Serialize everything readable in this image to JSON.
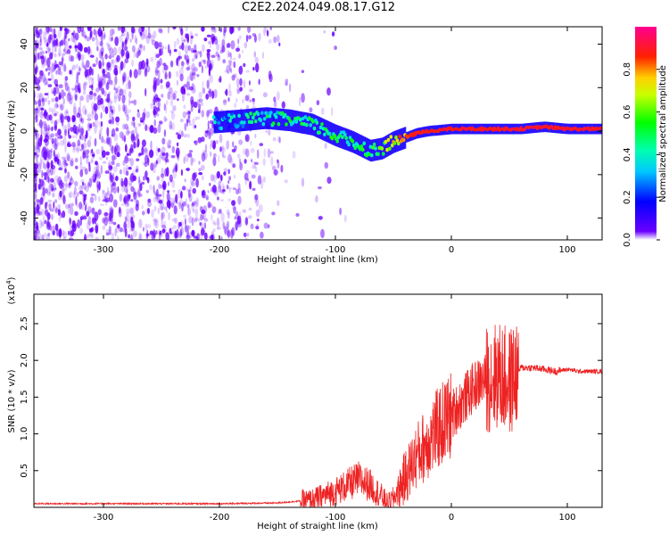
{
  "title": "C2E2.2024.049.08.17.G12",
  "chart_data": [
    {
      "type": "heatmap",
      "title": "",
      "xlabel": "Height of straight line (km)",
      "ylabel": "Frequency (Hz)",
      "xlim": [
        -360,
        130
      ],
      "ylim": [
        -50,
        48
      ],
      "x_ticks": [
        -300,
        -200,
        -100,
        0,
        100
      ],
      "y_ticks": [
        -40,
        -20,
        0,
        20,
        40
      ],
      "colorbar": {
        "label": "Normalized spectral amplitude",
        "range": [
          0,
          1
        ],
        "ticks": [
          "0.0",
          "0.2",
          "0.4",
          "0.6",
          "0.8"
        ],
        "colors": [
          "#ffffff",
          "#5b00ff",
          "#0000ff",
          "#00ffff",
          "#00ff00",
          "#ffff00",
          "#ff0000",
          "#ff00a0"
        ]
      },
      "noise_region_x": [
        -360,
        -150
      ],
      "trace": {
        "x": [
          -205,
          -180,
          -160,
          -140,
          -120,
          -100,
          -85,
          -70,
          -60,
          -50,
          -40,
          -30,
          -20,
          0,
          20,
          40,
          60,
          80,
          100,
          130
        ],
        "y": [
          4,
          5,
          6,
          5,
          3,
          -2,
          -5,
          -9,
          -8,
          -5,
          -3,
          -1,
          0,
          1,
          1,
          1,
          1,
          2,
          1,
          1
        ],
        "amplitude": [
          0.3,
          0.35,
          0.4,
          0.45,
          0.45,
          0.45,
          0.45,
          0.5,
          0.55,
          0.7,
          0.85,
          0.88,
          0.88,
          0.9,
          0.9,
          0.9,
          0.9,
          0.9,
          0.9,
          0.9
        ]
      }
    },
    {
      "type": "line",
      "title": "",
      "xlabel": "Height of straight line (km)",
      "ylabel": "SNR (10 * v/v)",
      "y_scale_label": "(x10",
      "y_scale_exp": "4",
      "xlim": [
        -360,
        130
      ],
      "ylim": [
        0,
        2.9
      ],
      "x_ticks": [
        -300,
        -200,
        -100,
        0,
        100
      ],
      "y_ticks": [
        "0.5",
        "1.0",
        "1.5",
        "2.0",
        "2.5"
      ],
      "color": "#ee2222",
      "series": [
        {
          "x": [
            -360,
            -300,
            -200,
            -150,
            -120,
            -100,
            -90,
            -80,
            -70,
            -60,
            -55,
            -50,
            -40,
            -30,
            -20,
            -10,
            0,
            10,
            20,
            30,
            40,
            50,
            60,
            70,
            80,
            90,
            100,
            110,
            120,
            130
          ],
          "y": [
            0.05,
            0.05,
            0.05,
            0.06,
            0.1,
            0.22,
            0.3,
            0.38,
            0.3,
            0.15,
            0.05,
            0.12,
            0.4,
            0.7,
            0.9,
            1.1,
            1.25,
            1.45,
            1.65,
            1.75,
            1.8,
            1.7,
            1.9,
            1.9,
            1.88,
            1.85,
            1.88,
            1.85,
            1.85,
            1.85
          ]
        }
      ]
    }
  ]
}
